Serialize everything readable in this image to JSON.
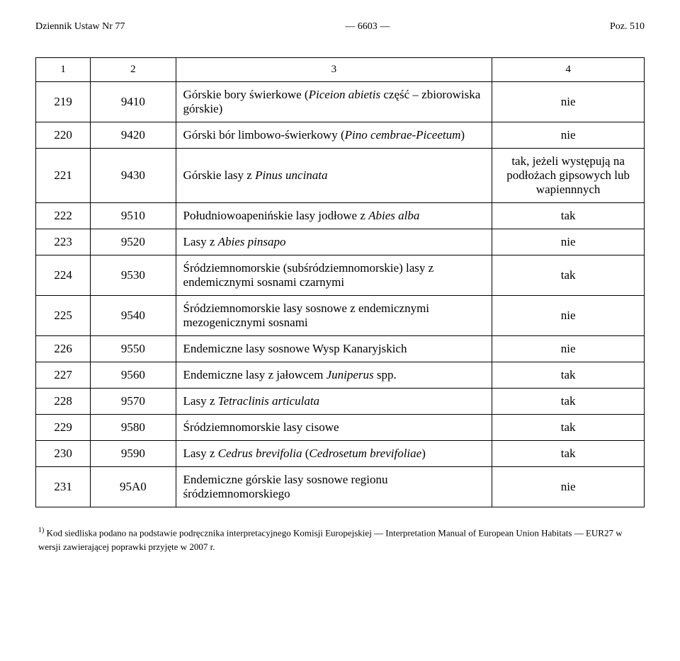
{
  "header": {
    "left": "Dziennik Ustaw Nr 77",
    "center": "— 6603 —",
    "right": "Poz. 510"
  },
  "table": {
    "head": {
      "c1": "1",
      "c2": "2",
      "c3": "3",
      "c4": "4"
    },
    "col_widths": [
      "9%",
      "14%",
      "52%",
      "25%"
    ],
    "border_color": "#000000",
    "font_size_body": 17,
    "font_size_head": 15,
    "rows": [
      {
        "c1": "219",
        "c2": "9410",
        "c3_parts": [
          {
            "t": "Górskie bory świerkowe (",
            "i": false
          },
          {
            "t": "Piceion abietis",
            "i": true
          },
          {
            "t": " część – zbiorowiska górskie)",
            "i": false
          }
        ],
        "c4": "nie"
      },
      {
        "c1": "220",
        "c2": "9420",
        "c3_parts": [
          {
            "t": "Górski bór limbowo-świerkowy (",
            "i": false
          },
          {
            "t": "Pino cembrae-Piceetum",
            "i": true
          },
          {
            "t": ")",
            "i": false
          }
        ],
        "c4": "nie"
      },
      {
        "c1": "221",
        "c2": "9430",
        "c3_parts": [
          {
            "t": "Górskie lasy z ",
            "i": false
          },
          {
            "t": "Pinus uncinata",
            "i": true
          }
        ],
        "c4": "tak, jeżeli występują na podłożach gipsowych lub wapiennnych"
      },
      {
        "c1": "222",
        "c2": "9510",
        "c3_parts": [
          {
            "t": "Południowoapenińskie lasy jodłowe z ",
            "i": false
          },
          {
            "t": "Abies alba",
            "i": true
          }
        ],
        "c4": "tak"
      },
      {
        "c1": "223",
        "c2": "9520",
        "c3_parts": [
          {
            "t": "Lasy z ",
            "i": false
          },
          {
            "t": "Abies pinsapo",
            "i": true
          }
        ],
        "c4": "nie"
      },
      {
        "c1": "224",
        "c2": "9530",
        "c3_parts": [
          {
            "t": "Śródziemnomorskie (subśródziemnomorskie) lasy z endemicznymi sosnami czarnymi",
            "i": false
          }
        ],
        "c4": "tak"
      },
      {
        "c1": "225",
        "c2": "9540",
        "c3_parts": [
          {
            "t": "Śródziemnomorskie lasy sosnowe z endemicznymi mezogenicznymi sosnami",
            "i": false
          }
        ],
        "c4": "nie"
      },
      {
        "c1": "226",
        "c2": "9550",
        "c3_parts": [
          {
            "t": "Endemiczne lasy sosnowe Wysp Kanaryjskich",
            "i": false
          }
        ],
        "c4": "nie"
      },
      {
        "c1": "227",
        "c2": "9560",
        "c3_parts": [
          {
            "t": "Endemiczne lasy z jałowcem ",
            "i": false
          },
          {
            "t": "Juniperus",
            "i": true
          },
          {
            "t": " spp.",
            "i": false
          }
        ],
        "c4": "tak"
      },
      {
        "c1": "228",
        "c2": "9570",
        "c3_parts": [
          {
            "t": "Lasy z ",
            "i": false
          },
          {
            "t": "Tetraclinis articulata",
            "i": true
          }
        ],
        "c4": "tak"
      },
      {
        "c1": "229",
        "c2": "9580",
        "c3_parts": [
          {
            "t": "Śródziemnomorskie lasy cisowe",
            "i": false
          }
        ],
        "c4": "tak"
      },
      {
        "c1": "230",
        "c2": "9590",
        "c3_parts": [
          {
            "t": "Lasy z ",
            "i": false
          },
          {
            "t": "Cedrus brevifolia",
            "i": true
          },
          {
            "t": " (",
            "i": false
          },
          {
            "t": "Cedrosetum brevifoliae",
            "i": true
          },
          {
            "t": ")",
            "i": false
          }
        ],
        "c4": "tak"
      },
      {
        "c1": "231",
        "c2": "95A0",
        "c3_parts": [
          {
            "t": "Endemiczne górskie lasy sosnowe regionu śródziemnomorskiego",
            "i": false
          }
        ],
        "c4": "nie"
      }
    ]
  },
  "footnote": {
    "marker": "1)",
    "text": " Kod siedliska podano na podstawie podręcznika interpretacyjnego Komisji Europejskiej — Interpretation Manual of European Union Habitats — EUR27 w wersji zawierającej poprawki przyjęte w 2007 r."
  },
  "colors": {
    "background": "#ffffff",
    "text": "#000000"
  }
}
